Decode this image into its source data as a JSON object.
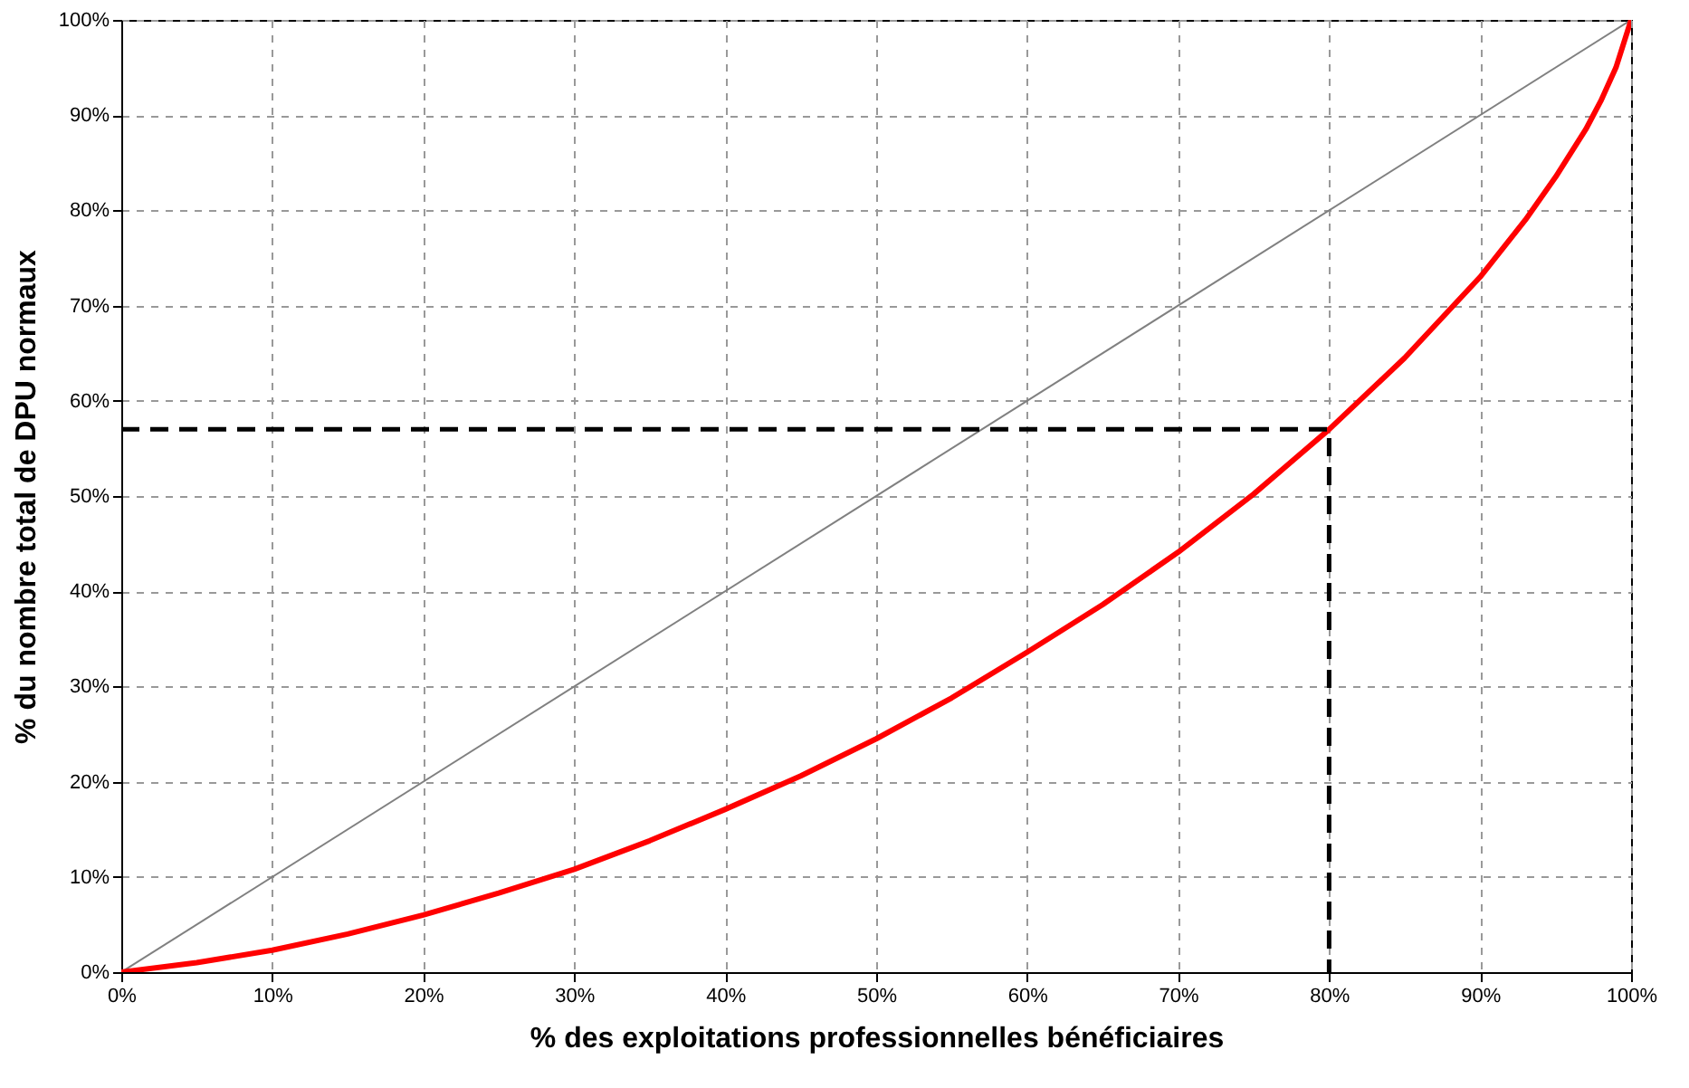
{
  "chart_data": {
    "type": "line",
    "xlabel": "% des exploitations professionnelles bénéficiaires",
    "ylabel": "% du nombre total de DPU normaux",
    "xlim": [
      0,
      100
    ],
    "ylim": [
      0,
      100
    ],
    "xticks": [
      {
        "value": 0,
        "label": "0%"
      },
      {
        "value": 10,
        "label": "10%"
      },
      {
        "value": 20,
        "label": "20%"
      },
      {
        "value": 30,
        "label": "30%"
      },
      {
        "value": 40,
        "label": "40%"
      },
      {
        "value": 50,
        "label": "50%"
      },
      {
        "value": 60,
        "label": "60%"
      },
      {
        "value": 70,
        "label": "70%"
      },
      {
        "value": 80,
        "label": "80%"
      },
      {
        "value": 90,
        "label": "90%"
      },
      {
        "value": 100,
        "label": "100%"
      }
    ],
    "yticks": [
      {
        "value": 0,
        "label": "0%"
      },
      {
        "value": 10,
        "label": "10%"
      },
      {
        "value": 20,
        "label": "20%"
      },
      {
        "value": 30,
        "label": "30%"
      },
      {
        "value": 40,
        "label": "40%"
      },
      {
        "value": 50,
        "label": "50%"
      },
      {
        "value": 60,
        "label": "60%"
      },
      {
        "value": 70,
        "label": "70%"
      },
      {
        "value": 80,
        "label": "80%"
      },
      {
        "value": 90,
        "label": "90%"
      },
      {
        "value": 100,
        "label": "100%"
      }
    ],
    "grid": true,
    "series": [
      {
        "color": "#808080",
        "line_style": "solid",
        "x": [
          0,
          100
        ],
        "values": [
          0,
          100
        ]
      },
      {
        "color": "#ff0000",
        "line_style": "solid",
        "x": [
          0,
          5,
          10,
          15,
          20,
          25,
          30,
          35,
          40,
          45,
          50,
          55,
          60,
          65,
          70,
          75,
          80,
          85,
          90,
          93,
          95,
          97,
          98,
          99,
          100
        ],
        "values": [
          0,
          1,
          2.3,
          4,
          6,
          8.3,
          10.8,
          13.8,
          17.1,
          20.6,
          24.5,
          28.8,
          33.6,
          38.6,
          44.1,
          50.2,
          57,
          64.5,
          73,
          79,
          83.5,
          88.5,
          91.5,
          95,
          100
        ]
      },
      {
        "color": "#000000",
        "line_style": "dashed",
        "x": [
          0,
          80,
          80
        ],
        "values": [
          57,
          57,
          0
        ]
      }
    ]
  }
}
